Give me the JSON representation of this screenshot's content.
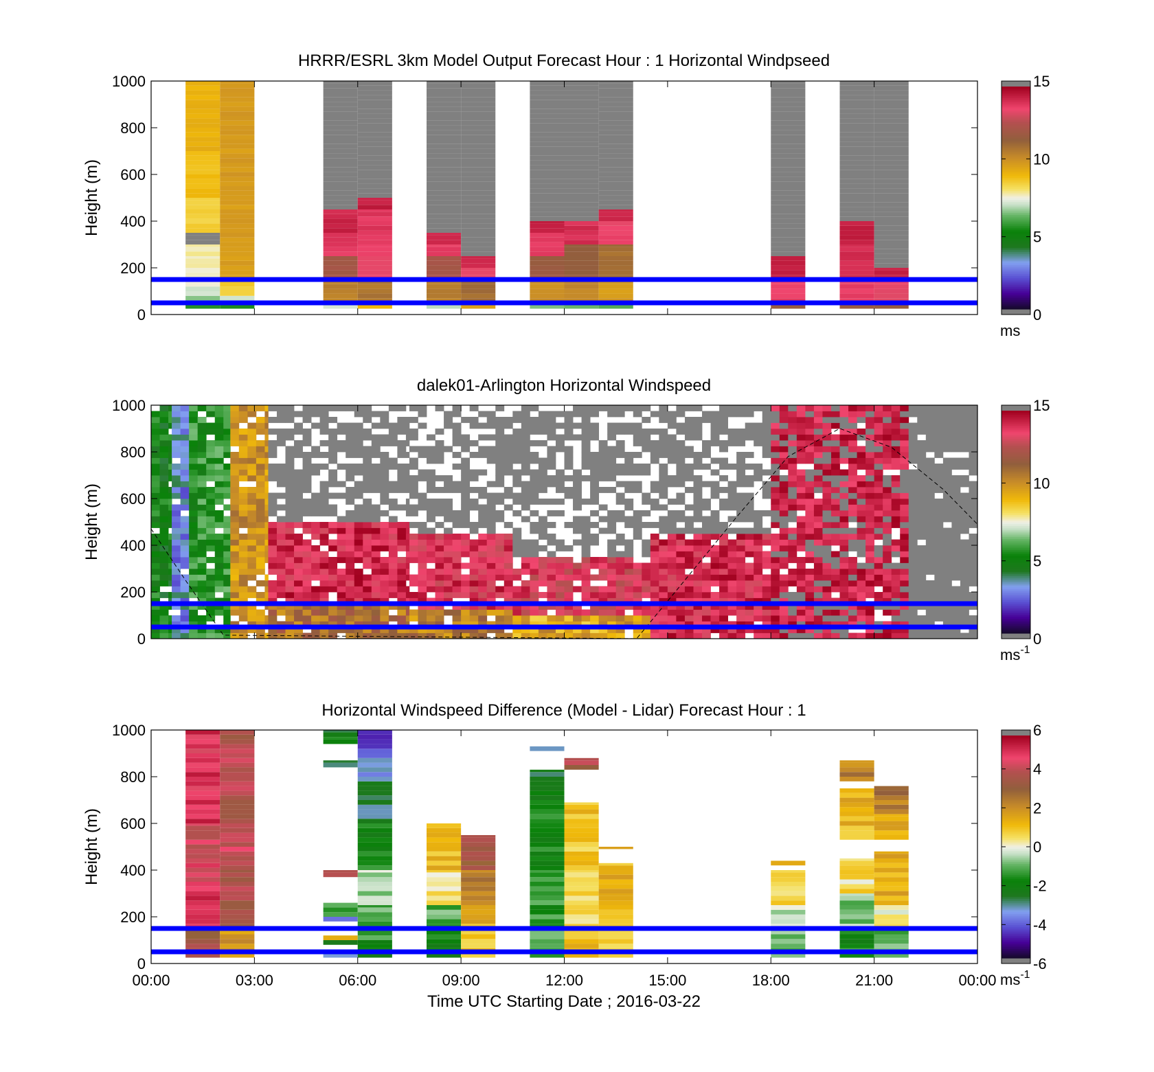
{
  "figure": {
    "xlabel": "Time UTC  Starting Date ; 2016-03-22",
    "x_ticks": [
      "00:00",
      "03:00",
      "06:00",
      "09:00",
      "12:00",
      "15:00",
      "18:00",
      "21:00",
      "00:00"
    ]
  },
  "chart_data": [
    {
      "type": "heatmap",
      "title": "HRRR/ESRL 3km Model Output   Forecast Hour : 1 Horizontal Windpseed",
      "xlabel": "",
      "ylabel": "Height (m)",
      "xlim_hours": [
        0,
        24
      ],
      "ylim": [
        0,
        1000
      ],
      "y_ticks": [
        "0",
        "200",
        "400",
        "600",
        "800",
        "1000"
      ],
      "colorbar": {
        "min": 0,
        "max": 15,
        "ticks": [
          "0",
          "5",
          "10",
          "15"
        ],
        "unit": "ms"
      },
      "reference_heights_m": [
        50,
        150
      ],
      "columns": [
        {
          "t0": 1.0,
          "t1": 2.0,
          "segments": [
            [
              25,
              40,
              5.5
            ],
            [
              40,
              60,
              6.0
            ],
            [
              60,
              80,
              6.5
            ],
            [
              80,
              120,
              7.0
            ],
            [
              120,
              200,
              7.5
            ],
            [
              200,
              250,
              7.7
            ],
            [
              250,
              300,
              7.8
            ],
            [
              300,
              350,
              15.0
            ],
            [
              350,
              500,
              8.5
            ],
            [
              500,
              700,
              8.9
            ],
            [
              700,
              1000,
              9.2
            ]
          ]
        },
        {
          "t0": 2.0,
          "t1": 3.0,
          "segments": [
            [
              25,
              50,
              5.5
            ],
            [
              50,
              80,
              7.2
            ],
            [
              80,
              150,
              8.5
            ],
            [
              150,
              1000,
              9.8
            ]
          ]
        },
        {
          "t0": 5.0,
          "t1": 6.0,
          "segments": [
            [
              25,
              50,
              7.4
            ],
            [
              50,
              150,
              10.5
            ],
            [
              150,
              250,
              12.0
            ],
            [
              250,
              350,
              13.8
            ],
            [
              350,
              450,
              14.2
            ],
            [
              450,
              1000,
              15.0
            ]
          ]
        },
        {
          "t0": 6.0,
          "t1": 7.0,
          "segments": [
            [
              25,
              50,
              9.0
            ],
            [
              50,
              150,
              10.8
            ],
            [
              150,
              300,
              13.5
            ],
            [
              300,
              450,
              13.8
            ],
            [
              450,
              500,
              14.3
            ],
            [
              500,
              1000,
              15.0
            ]
          ]
        },
        {
          "t0": 8.0,
          "t1": 9.0,
          "segments": [
            [
              25,
              50,
              7.0
            ],
            [
              50,
              150,
              10.5
            ],
            [
              150,
              250,
              12.2
            ],
            [
              250,
              300,
              13.6
            ],
            [
              300,
              350,
              14.2
            ],
            [
              350,
              1000,
              15.0
            ]
          ]
        },
        {
          "t0": 9.0,
          "t1": 10.0,
          "segments": [
            [
              25,
              50,
              9.5
            ],
            [
              50,
              150,
              11.0
            ],
            [
              150,
              200,
              13.5
            ],
            [
              200,
              250,
              14.2
            ],
            [
              250,
              1000,
              15.0
            ]
          ]
        },
        {
          "t0": 11.0,
          "t1": 12.0,
          "segments": [
            [
              25,
              50,
              6.5
            ],
            [
              50,
              150,
              10.2
            ],
            [
              150,
              250,
              11.8
            ],
            [
              250,
              350,
              13.6
            ],
            [
              350,
              400,
              14.2
            ],
            [
              400,
              1000,
              15.0
            ]
          ]
        },
        {
          "t0": 12.0,
          "t1": 13.0,
          "segments": [
            [
              25,
              50,
              6.2
            ],
            [
              50,
              150,
              10.4
            ],
            [
              150,
              300,
              11.6
            ],
            [
              300,
              400,
              14.0
            ],
            [
              400,
              1000,
              15.0
            ]
          ]
        },
        {
          "t0": 13.0,
          "t1": 14.0,
          "segments": [
            [
              25,
              50,
              6.0
            ],
            [
              50,
              150,
              9.8
            ],
            [
              150,
              300,
              11.0
            ],
            [
              300,
              400,
              13.5
            ],
            [
              400,
              450,
              14.2
            ],
            [
              450,
              1000,
              15.0
            ]
          ]
        },
        {
          "t0": 18.0,
          "t1": 19.0,
          "segments": [
            [
              25,
              50,
              11.5
            ],
            [
              50,
              150,
              13.6
            ],
            [
              150,
              250,
              14.3
            ],
            [
              250,
              1000,
              15.0
            ]
          ]
        },
        {
          "t0": 20.0,
          "t1": 21.0,
          "segments": [
            [
              25,
              50,
              11.8
            ],
            [
              50,
              150,
              13.6
            ],
            [
              150,
              300,
              14.0
            ],
            [
              300,
              400,
              14.4
            ],
            [
              400,
              1000,
              15.0
            ]
          ]
        },
        {
          "t0": 21.0,
          "t1": 22.0,
          "segments": [
            [
              25,
              50,
              11.5
            ],
            [
              50,
              150,
              13.4
            ],
            [
              150,
              200,
              14.3
            ],
            [
              200,
              1000,
              15.0
            ]
          ]
        }
      ]
    },
    {
      "type": "heatmap",
      "title": "dalek01-Arlington  Horizontal Windspeed",
      "xlabel": "",
      "ylabel": "Height (m)",
      "xlim_hours": [
        0,
        24
      ],
      "ylim": [
        0,
        1000
      ],
      "y_ticks": [
        "0",
        "200",
        "400",
        "600",
        "800",
        "1000"
      ],
      "colorbar": {
        "min": 0,
        "max": 15,
        "ticks": [
          "0",
          "5",
          "10",
          "15"
        ],
        "unit": "ms",
        "unit_exponent": "-1"
      },
      "reference_heights_m": [
        50,
        150
      ],
      "grid_resolution": {
        "time_step_hours": 0.25,
        "height_step_m": 25
      },
      "regimes": [
        {
          "t0": 0.0,
          "t1": 0.6,
          "pattern": "green",
          "value": 5.0
        },
        {
          "t0": 0.6,
          "t1": 1.1,
          "pattern": "blue-purple",
          "value": 3.0
        },
        {
          "t0": 1.1,
          "t1": 2.3,
          "pattern": "green",
          "value": 5.5
        },
        {
          "t0": 2.3,
          "t1": 3.4,
          "pattern": "yellow-brown",
          "value": 10.0
        },
        {
          "t0": 3.4,
          "t1": 7.5,
          "pattern": "red over yellow-brown",
          "upper_value": 14.0,
          "lower_value": 11.0,
          "data_top_m": 500
        },
        {
          "t0": 7.5,
          "t1": 10.5,
          "pattern": "red over yellow-brown",
          "upper_value": 13.8,
          "lower_value": 10.5,
          "data_top_m": 450
        },
        {
          "t0": 10.5,
          "t1": 14.5,
          "pattern": "red-brown over yellow",
          "upper_value": 13.5,
          "lower_value": 9.5,
          "data_top_m": 350
        },
        {
          "t0": 14.5,
          "t1": 18.0,
          "pattern": "red with gray above",
          "value": 14.0,
          "data_top_m": 450
        },
        {
          "t0": 18.0,
          "t1": 22.0,
          "pattern": "dark red",
          "value": 14.5,
          "data_top_m": 1000
        },
        {
          "t0": 22.0,
          "t1": 24.0,
          "pattern": "gray (above scale)",
          "value": 15.0
        }
      ],
      "dashed_curve": {
        "description": "thin dashed black curve",
        "points": [
          [
            0.0,
            470
          ],
          [
            1.0,
            250
          ],
          [
            2.1,
            15
          ],
          [
            14.1,
            0
          ],
          [
            15.5,
            250
          ],
          [
            17.0,
            520
          ],
          [
            18.5,
            780
          ],
          [
            20.0,
            900
          ],
          [
            21.5,
            820
          ],
          [
            23.0,
            640
          ],
          [
            24.0,
            490
          ]
        ]
      }
    },
    {
      "type": "heatmap",
      "title": "Horizontal Windspeed Difference (Model - Lidar) Forecast Hour : 1",
      "xlabel": "Time UTC  Starting Date ; 2016-03-22",
      "ylabel": "Height (m)",
      "xlim_hours": [
        0,
        24
      ],
      "ylim": [
        0,
        1000
      ],
      "y_ticks": [
        "0",
        "200",
        "400",
        "600",
        "800",
        "1000"
      ],
      "colorbar": {
        "min": -6,
        "max": 6,
        "ticks": [
          "-6",
          "-4",
          "-2",
          "0",
          "2",
          "4",
          "6"
        ],
        "unit": "ms",
        "unit_exponent": "-1"
      },
      "reference_heights_m": [
        50,
        150
      ],
      "columns": [
        {
          "t0": 1.0,
          "t1": 2.0,
          "segments": [
            [
              25,
              150,
              3.5
            ],
            [
              150,
              350,
              5.2
            ],
            [
              350,
              600,
              4.6
            ],
            [
              600,
              1000,
              5.0
            ]
          ]
        },
        {
          "t0": 2.0,
          "t1": 3.0,
          "segments": [
            [
              25,
              150,
              2.0
            ],
            [
              150,
              400,
              3.8
            ],
            [
              400,
              600,
              4.3
            ],
            [
              600,
              1000,
              4.0
            ]
          ]
        },
        {
          "t0": 5.0,
          "t1": 6.0,
          "segments": [
            [
              25,
              40,
              -2.8
            ],
            [
              40,
              60,
              -1.0
            ],
            [
              80,
              100,
              -2.5
            ],
            [
              100,
              120,
              1.0
            ],
            [
              180,
              200,
              -4.0
            ],
            [
              200,
              260,
              -1.2
            ],
            [
              370,
              400,
              3.6
            ],
            [
              840,
              870,
              -2.8
            ],
            [
              940,
              970,
              -1.5
            ],
            [
              970,
              1000,
              -2.6
            ]
          ]
        },
        {
          "t0": 6.0,
          "t1": 7.0,
          "segments": [
            [
              25,
              100,
              -2.0
            ],
            [
              100,
              250,
              -1.0
            ],
            [
              250,
              400,
              -0.6
            ],
            [
              400,
              600,
              -1.8
            ],
            [
              600,
              800,
              -3.0
            ],
            [
              800,
              900,
              -3.6
            ],
            [
              900,
              1000,
              -4.6
            ]
          ]
        },
        {
          "t0": 8.0,
          "t1": 9.0,
          "segments": [
            [
              25,
              150,
              -2.0
            ],
            [
              150,
              250,
              -1.2
            ],
            [
              250,
              400,
              0.4
            ],
            [
              400,
              600,
              1.2
            ]
          ]
        },
        {
          "t0": 9.0,
          "t1": 10.0,
          "segments": [
            [
              25,
              150,
              0.8
            ],
            [
              150,
              250,
              1.5
            ],
            [
              250,
              400,
              2.5
            ],
            [
              400,
              550,
              3.5
            ]
          ]
        },
        {
          "t0": 11.0,
          "t1": 12.0,
          "segments": [
            [
              25,
              150,
              -1.0
            ],
            [
              150,
              400,
              -1.5
            ],
            [
              400,
              700,
              -1.8
            ],
            [
              700,
              830,
              -2.4
            ],
            [
              910,
              930,
              -3.2
            ]
          ]
        },
        {
          "t0": 12.0,
          "t1": 13.0,
          "segments": [
            [
              25,
              150,
              1.2
            ],
            [
              150,
              400,
              0.6
            ],
            [
              400,
              690,
              1.0
            ],
            [
              830,
              880,
              3.8
            ]
          ]
        },
        {
          "t0": 13.0,
          "t1": 14.0,
          "segments": [
            [
              25,
              150,
              0.8
            ],
            [
              150,
              300,
              1.0
            ],
            [
              300,
              430,
              1.3
            ],
            [
              490,
              500,
              1.2
            ]
          ]
        },
        {
          "t0": 18.0,
          "t1": 19.0,
          "segments": [
            [
              25,
              150,
              -0.8
            ],
            [
              150,
              250,
              -0.5
            ],
            [
              250,
              400,
              0.5
            ],
            [
              420,
              440,
              1.2
            ]
          ]
        },
        {
          "t0": 20.0,
          "t1": 21.0,
          "segments": [
            [
              25,
              150,
              -1.8
            ],
            [
              150,
              300,
              -0.8
            ],
            [
              300,
              450,
              0.5
            ],
            [
              530,
              750,
              1.3
            ],
            [
              780,
              870,
              2.3
            ]
          ]
        },
        {
          "t0": 21.0,
          "t1": 22.0,
          "segments": [
            [
              25,
              150,
              -1.2
            ],
            [
              150,
              250,
              0.3
            ],
            [
              250,
              480,
              1.4
            ],
            [
              530,
              640,
              1.6
            ],
            [
              640,
              760,
              2.6
            ]
          ]
        }
      ]
    }
  ]
}
